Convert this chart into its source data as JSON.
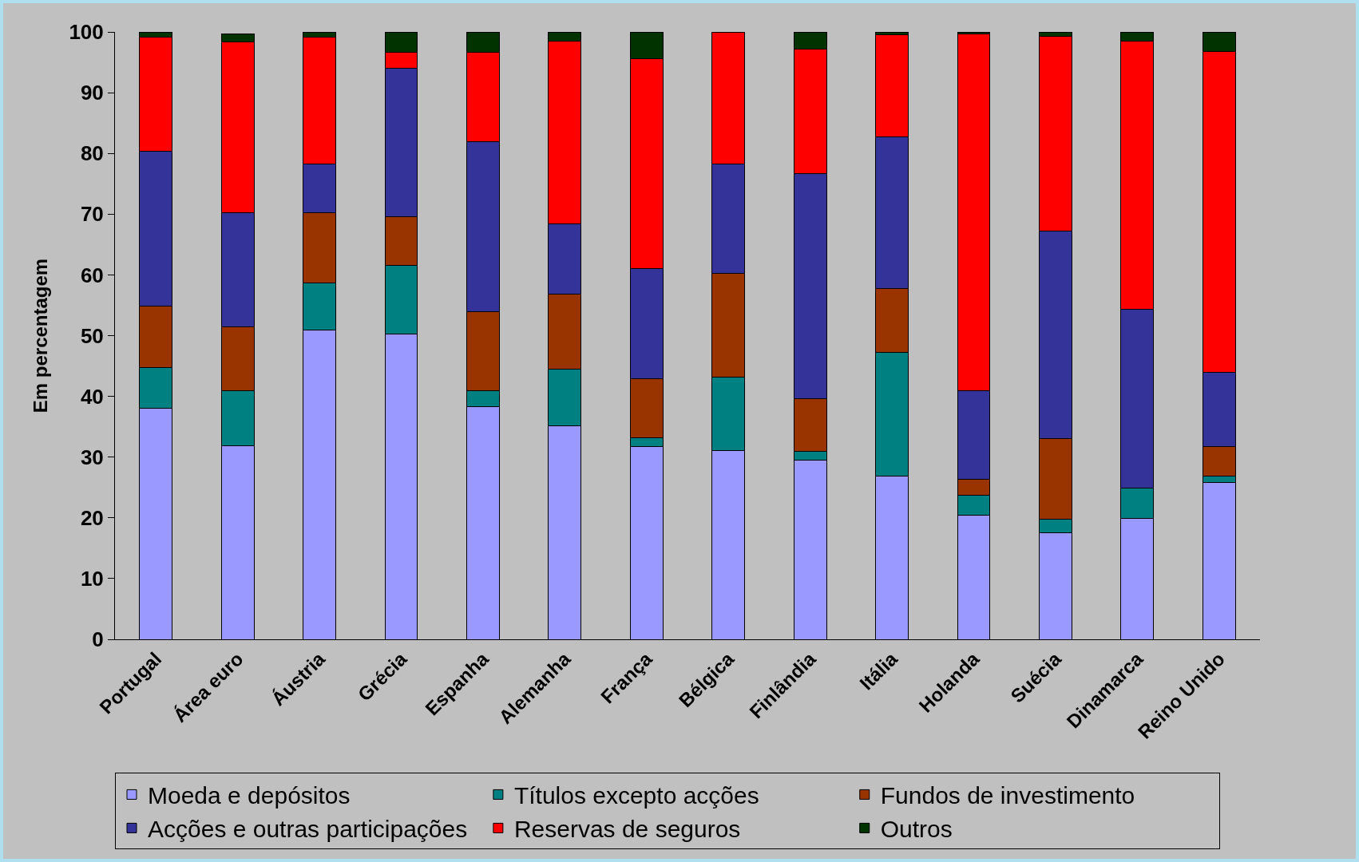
{
  "chart_data": {
    "type": "bar",
    "stacked": true,
    "ylabel": "Em percentagem",
    "categories": [
      "Portugal",
      "Área euro",
      "Áustria",
      "Grécia",
      "Espanha",
      "Alemanha",
      "França",
      "Bélgica",
      "Finlândia",
      "Itália",
      "Holanda",
      "Suécia",
      "Dinamarca",
      "Reino Unido"
    ],
    "series": [
      {
        "name": "Moeda e depósitos",
        "color": "#9999ff",
        "values": [
          38.0,
          31.9,
          50.9,
          50.2,
          38.3,
          35.1,
          31.7,
          31.1,
          29.5,
          26.9,
          20.4,
          17.5,
          19.9,
          25.8
        ]
      },
      {
        "name": "Títulos excepto acções",
        "color": "#008080",
        "values": [
          6.7,
          9.0,
          7.8,
          11.4,
          2.6,
          9.4,
          1.5,
          12.1,
          1.4,
          20.4,
          3.3,
          2.3,
          5.0,
          1.1
        ]
      },
      {
        "name": "Fundos de investimento",
        "color": "#993300",
        "values": [
          10.2,
          10.6,
          11.5,
          8.0,
          13.1,
          12.3,
          9.7,
          17.1,
          8.7,
          10.5,
          2.6,
          13.2,
          null,
          4.8
        ]
      },
      {
        "name": "Acções e outras participações",
        "color": "#333399",
        "values": [
          25.4,
          18.7,
          8.0,
          24.4,
          27.9,
          11.6,
          18.2,
          17.9,
          37.1,
          24.9,
          14.6,
          34.2,
          29.5,
          12.3
        ]
      },
      {
        "name": "Reservas de seguros",
        "color": "#ff0000",
        "values": [
          18.8,
          28.1,
          20.9,
          2.7,
          14.8,
          30.1,
          34.5,
          21.8,
          20.5,
          16.9,
          58.8,
          32.1,
          44.1,
          52.8
        ]
      },
      {
        "name": "Outros",
        "color": "#003300",
        "values": [
          0.9,
          1.4,
          0.9,
          3.3,
          3.3,
          1.5,
          4.4,
          null,
          2.8,
          0.4,
          0.3,
          0.7,
          1.5,
          3.2
        ]
      }
    ],
    "ylim": [
      0,
      100
    ],
    "yticks": [
      0,
      10,
      20,
      30,
      40,
      50,
      60,
      70,
      80,
      90,
      100
    ],
    "grid": false,
    "legend": "bottom"
  }
}
